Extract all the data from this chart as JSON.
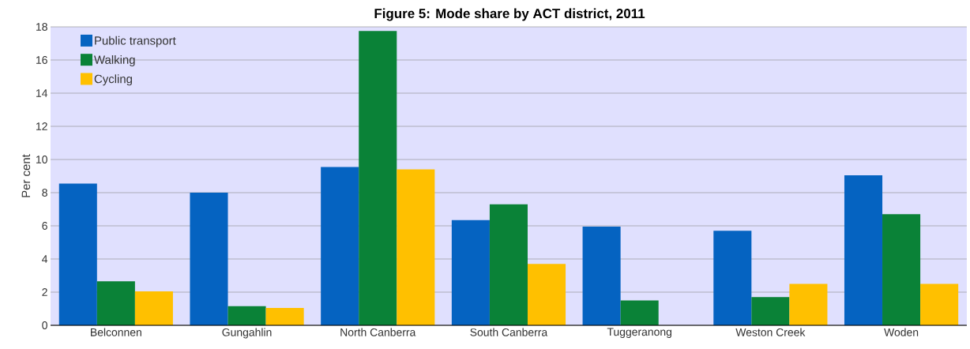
{
  "chart_data": {
    "type": "bar",
    "title": "Figure 5: Mode share by ACT district, 2011",
    "ylabel": "Per cent",
    "categories": [
      "Belconnen",
      "Gungahlin",
      "North Canberra",
      "South Canberra",
      "Tuggeranong",
      "Weston Creek",
      "Woden"
    ],
    "series": [
      {
        "name": "Public transport",
        "color": "#0563c1",
        "values": [
          8.55,
          8.0,
          9.55,
          6.35,
          5.95,
          5.7,
          9.05
        ]
      },
      {
        "name": "Walking",
        "color": "#0a8237",
        "values": [
          2.65,
          1.15,
          17.75,
          7.3,
          1.5,
          1.7,
          6.7
        ]
      },
      {
        "name": "Cycling",
        "color": "#ffc000",
        "values": [
          2.05,
          1.05,
          9.4,
          3.7,
          null,
          2.5,
          2.5
        ]
      }
    ],
    "ylim": [
      0,
      18
    ],
    "yticks": [
      0,
      2,
      4,
      6,
      8,
      10,
      12,
      14,
      16,
      18
    ],
    "grid": "y",
    "legend": "top left"
  }
}
